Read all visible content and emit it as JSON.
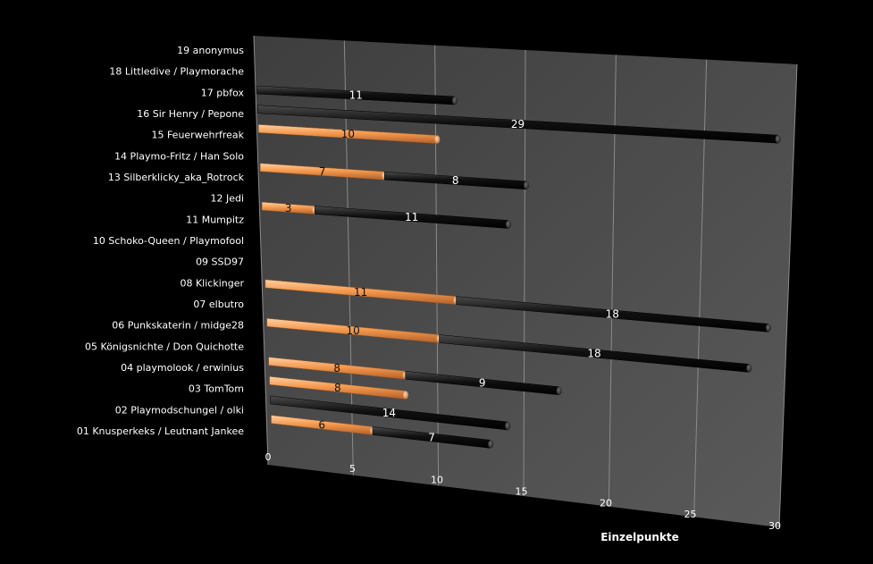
{
  "chart_data": {
    "type": "bar",
    "orientation": "horizontal",
    "stacked": true,
    "style": "3d",
    "title": "",
    "xlabel": "Einzelpunkte",
    "ylabel": "",
    "xlim": [
      0,
      30
    ],
    "x_ticks": [
      "0",
      "5",
      "10",
      "15",
      "20",
      "25",
      "30"
    ],
    "grid": true,
    "background_color": "#000000",
    "categories": [
      "19 anonymus",
      "18 Littledive / Playmorache",
      "17 pbfox",
      "16 Sir Henry / Pepone",
      "15 Feuerwehrfreak",
      "14 Playmo-Fritz / Han Solo",
      "13 Silberklicky_aka_Rotrock",
      "12 Jedi",
      "11 Mumpitz",
      "10 Schoko-Queen / Playmofool",
      "09 SSD97",
      "08 Klickinger",
      "07 elbutro",
      "06 Punkskaterin / midge28",
      "05 Königsnichte / Don Quichotte",
      "04 playmolook / erwinius",
      "03 TomTom",
      "02 Playmodschungel / olki",
      "01 Knusperkeks / Leutnant Jankee"
    ],
    "series": [
      {
        "name": "Serie 1",
        "color": "#f5a05a",
        "values": [
          0,
          0,
          0,
          10,
          0,
          7,
          0,
          3,
          0,
          0,
          0,
          11,
          0,
          10,
          0,
          8,
          8,
          0,
          6
        ],
        "labels": [
          "",
          "",
          "",
          "10",
          "",
          "7",
          "",
          "3",
          "",
          "",
          "",
          "11",
          "",
          "10",
          "",
          "8",
          "8",
          "",
          "6"
        ]
      },
      {
        "name": "Serie 2",
        "color": "#0a0a0a",
        "values": [
          0,
          11,
          29,
          0,
          0,
          8,
          0,
          11,
          0,
          0,
          0,
          18,
          0,
          18,
          0,
          9,
          0,
          14,
          7
        ],
        "labels": [
          "",
          "11",
          "29",
          "",
          "",
          "8",
          "",
          "11",
          "",
          "",
          "",
          "18",
          "",
          "18",
          "",
          "9",
          "",
          "14",
          "7"
        ]
      }
    ]
  }
}
